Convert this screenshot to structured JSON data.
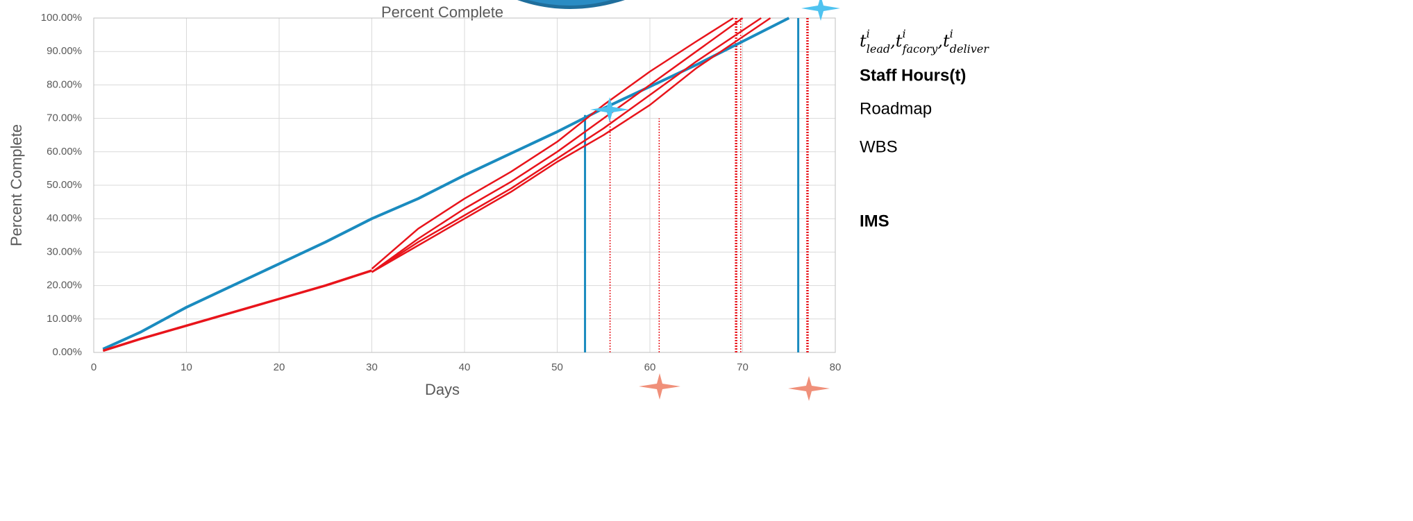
{
  "chart_data": {
    "type": "line",
    "title": "Percent Complete",
    "x_label": "Days",
    "y_label": "Percent Complete",
    "xlim": [
      0,
      80
    ],
    "xticks": [
      0,
      10,
      20,
      30,
      40,
      50,
      60,
      70,
      80
    ],
    "ylim": [
      0,
      100
    ],
    "yticks": [
      {
        "value": 0,
        "label": "0.00%"
      },
      {
        "value": 10,
        "label": "10.00%"
      },
      {
        "value": 20,
        "label": "20.00%"
      },
      {
        "value": 30,
        "label": "30.00%"
      },
      {
        "value": 40,
        "label": "40.00%"
      },
      {
        "value": 50,
        "label": "50.00%"
      },
      {
        "value": 60,
        "label": "60.00%"
      },
      {
        "value": 70,
        "label": "70.00%"
      },
      {
        "value": 80,
        "label": "80.00%"
      },
      {
        "value": 90,
        "label": "90.00%"
      },
      {
        "value": 100,
        "label": "100.00%"
      }
    ],
    "grid": true,
    "series": [
      {
        "color": "#1a8bbf",
        "width": 4,
        "x": [
          1,
          5,
          10,
          15,
          20,
          25,
          30,
          35,
          40,
          45,
          50,
          55,
          60,
          65,
          70,
          75
        ],
        "values": [
          1,
          6,
          13.5,
          20,
          26.5,
          33,
          40,
          46,
          53,
          59.5,
          66,
          73,
          79.5,
          86,
          93,
          100
        ]
      },
      {
        "color": "#e8141b",
        "width": 3.5,
        "x": [
          1,
          5,
          10,
          15,
          20,
          25,
          30
        ],
        "values": [
          0.5,
          4,
          8,
          12,
          16,
          20,
          24.5
        ]
      },
      {
        "color": "#e8141b",
        "width": 2.5,
        "x": [
          30,
          35,
          40,
          45,
          50,
          55,
          60,
          65,
          69
        ],
        "values": [
          25,
          37,
          46,
          54,
          63,
          74,
          84,
          93,
          100
        ]
      },
      {
        "color": "#e8141b",
        "width": 2.5,
        "x": [
          30,
          35,
          40,
          45,
          50,
          55,
          60,
          65,
          70
        ],
        "values": [
          24,
          34,
          43,
          51,
          60,
          70,
          80,
          90,
          100
        ]
      },
      {
        "color": "#e8141b",
        "width": 2.5,
        "x": [
          30,
          35,
          40,
          45,
          50,
          55,
          60,
          65,
          72
        ],
        "values": [
          24,
          33,
          41,
          49,
          58,
          67,
          77,
          87,
          100
        ]
      },
      {
        "color": "#e8141b",
        "width": 2.5,
        "x": [
          30,
          35,
          40,
          45,
          50,
          55,
          60,
          65,
          73
        ],
        "values": [
          24,
          32,
          40,
          48,
          57,
          65,
          74,
          85,
          100
        ]
      }
    ],
    "reference_lines": [
      {
        "x": 53,
        "top": 71,
        "color": "#1a8bbf",
        "style": "solid",
        "width": 3
      },
      {
        "x": 76,
        "top": 100,
        "color": "#1a8bbf",
        "style": "solid",
        "width": 3
      },
      {
        "x": 55.7,
        "top": 72,
        "color": "#e8141b",
        "style": "dotted",
        "width": 1.5
      },
      {
        "x": 61,
        "top": 70,
        "color": "#e8141b",
        "style": "dotted",
        "width": 1.5
      },
      {
        "x": 69.3,
        "top": 100,
        "color": "#e8141b",
        "style": "dotted",
        "width": 3.5
      },
      {
        "x": 69.8,
        "top": 100,
        "color": "#e8141b",
        "style": "dotted",
        "width": 1.5
      },
      {
        "x": 77,
        "top": 100,
        "color": "#e8141b",
        "style": "dotted",
        "width": 3.5
      }
    ]
  },
  "side_formula": {
    "separator": ",",
    "terms": [
      {
        "base": "t",
        "sup": "i",
        "sub": "lead"
      },
      {
        "base": "t",
        "sup": "i",
        "sub": "facory"
      },
      {
        "base": "t",
        "sup": "i",
        "sub": "deliver"
      }
    ]
  },
  "side_notes": [
    {
      "text": "Staff Hours(t)",
      "bold": true
    },
    {
      "text": "Roadmap",
      "bold": false
    },
    {
      "text": "WBS",
      "bold": false
    },
    {
      "text": "IMS",
      "bold": true
    }
  ]
}
